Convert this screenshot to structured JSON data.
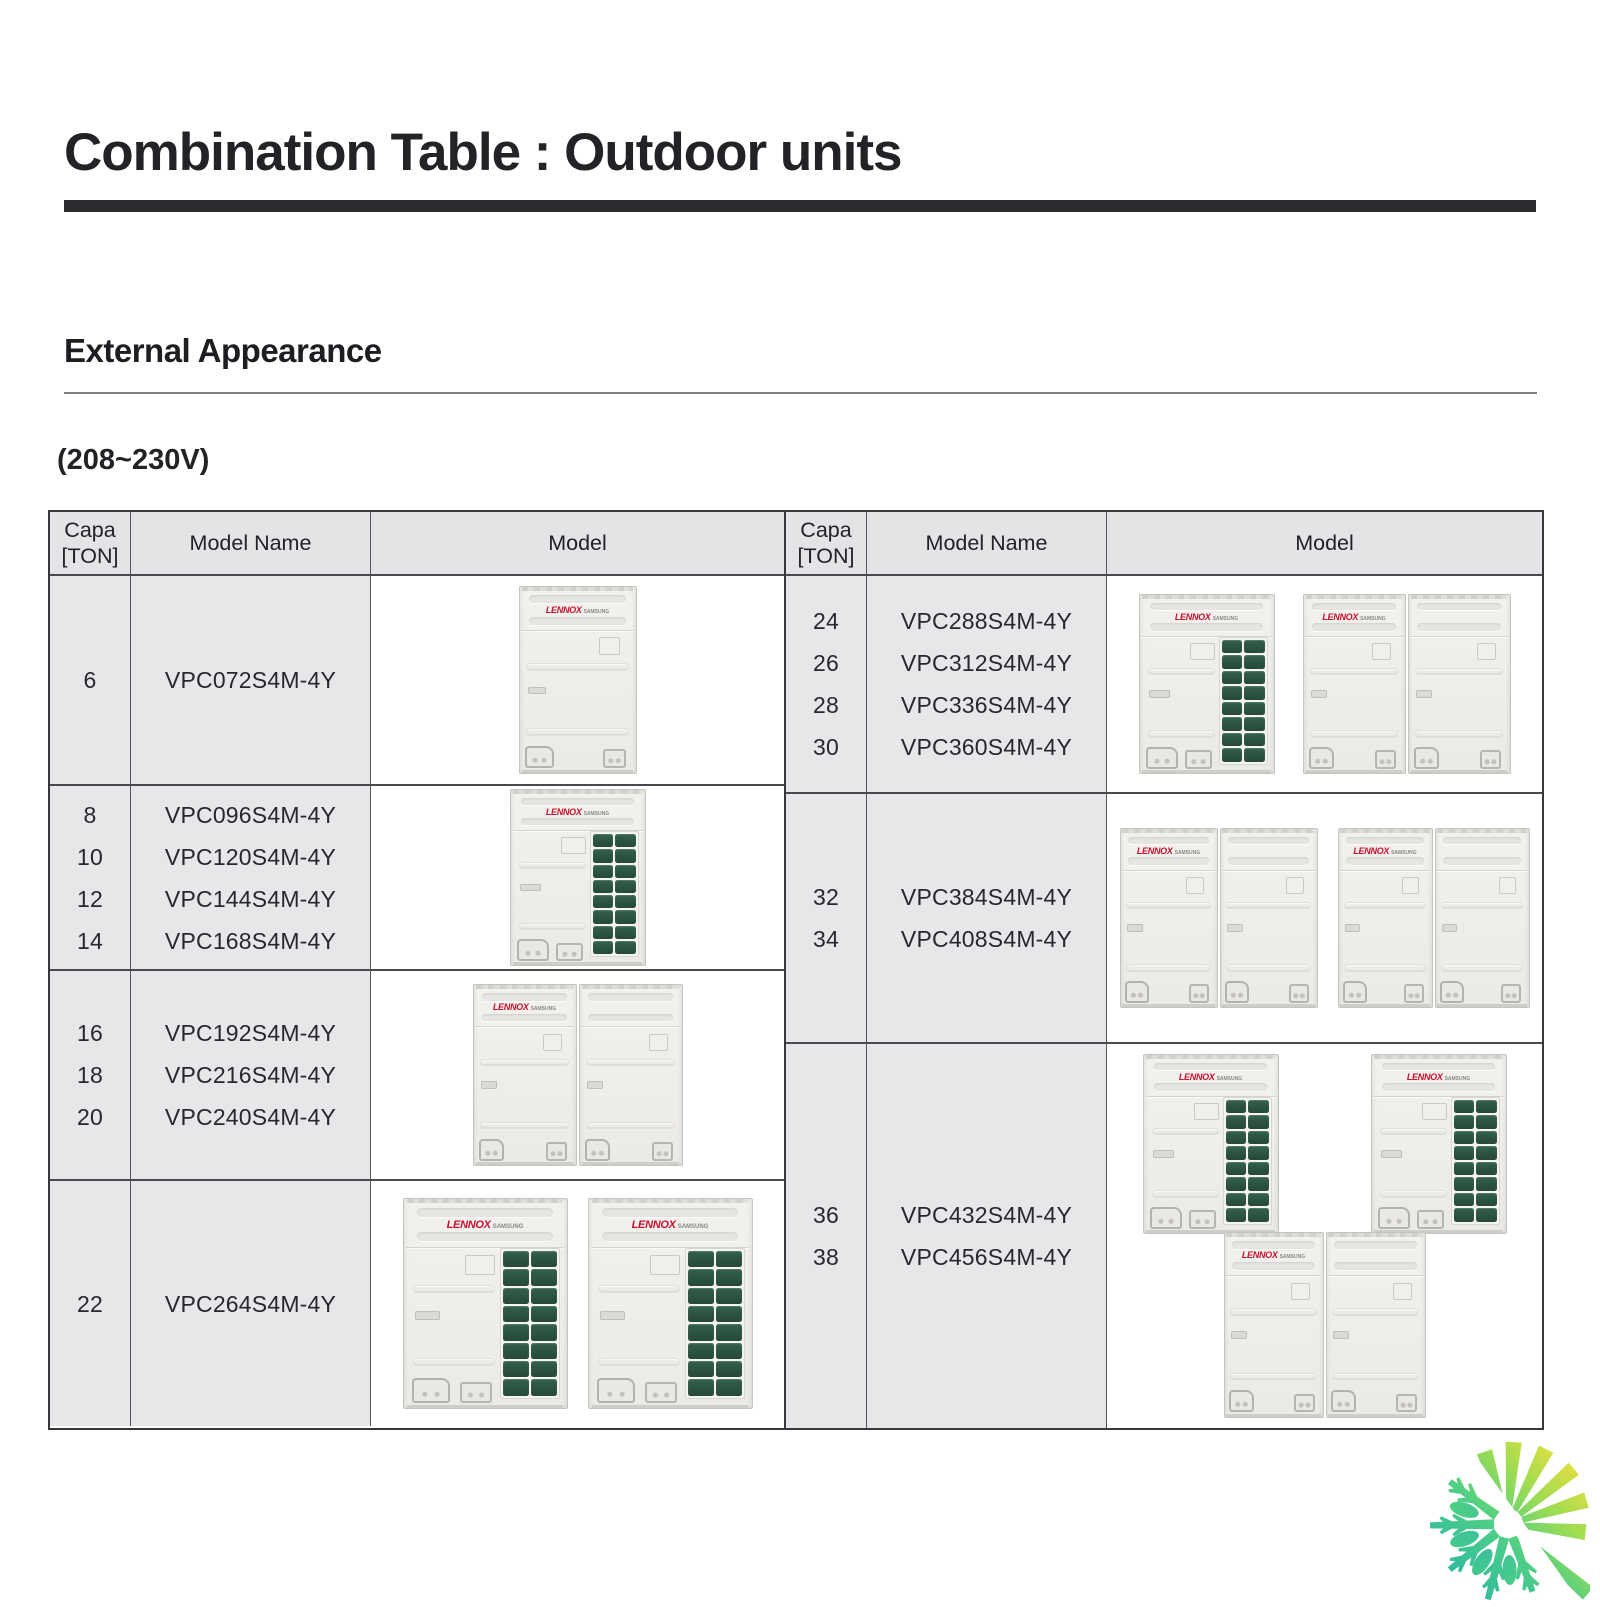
{
  "page": {
    "title": "Combination Table : Outdoor units",
    "section_heading": "External Appearance",
    "voltage_label": "(208~230V)"
  },
  "table": {
    "header": {
      "capa_line1": "Capa",
      "capa_line2": "[TON]",
      "model_name": "Model Name",
      "model": "Model"
    },
    "left_rows": [
      {
        "capacities": [
          "6"
        ],
        "models": [
          "VPC072S4M-4Y"
        ],
        "image": "single-plain"
      },
      {
        "capacities": [
          "8",
          "10",
          "12",
          "14"
        ],
        "models": [
          "VPC096S4M-4Y",
          "VPC120S4M-4Y",
          "VPC144S4M-4Y",
          "VPC168S4M-4Y"
        ],
        "image": "single-grille"
      },
      {
        "capacities": [
          "16",
          "18",
          "20"
        ],
        "models": [
          "VPC192S4M-4Y",
          "VPC216S4M-4Y",
          "VPC240S4M-4Y"
        ],
        "image": "twin-plain"
      },
      {
        "capacities": [
          "22"
        ],
        "models": [
          "VPC264S4M-4Y"
        ],
        "image": "two-grille"
      }
    ],
    "right_rows": [
      {
        "capacities": [
          "24",
          "26",
          "28",
          "30"
        ],
        "models": [
          "VPC288S4M-4Y",
          "VPC312S4M-4Y",
          "VPC336S4M-4Y",
          "VPC360S4M-4Y"
        ],
        "image": "grille-plus-twin"
      },
      {
        "capacities": [
          "32",
          "34"
        ],
        "models": [
          "VPC384S4M-4Y",
          "VPC408S4M-4Y"
        ],
        "image": "twin-plus-twin"
      },
      {
        "capacities": [
          "36",
          "38"
        ],
        "models": [
          "VPC432S4M-4Y",
          "VPC456S4M-4Y"
        ],
        "image": "two-grille-over-twin"
      }
    ]
  },
  "unit_branding": {
    "brand": "LENNOX",
    "sub_brand": "SAMSUNG"
  },
  "colors": {
    "grille_green": "#2e5747",
    "lennox_red": "#c8102e",
    "logo_teal": "#29b5a8",
    "logo_green": "#4ecf86",
    "logo_yellow": "#ecdf3e",
    "table_gray": "#e7e7ea"
  }
}
